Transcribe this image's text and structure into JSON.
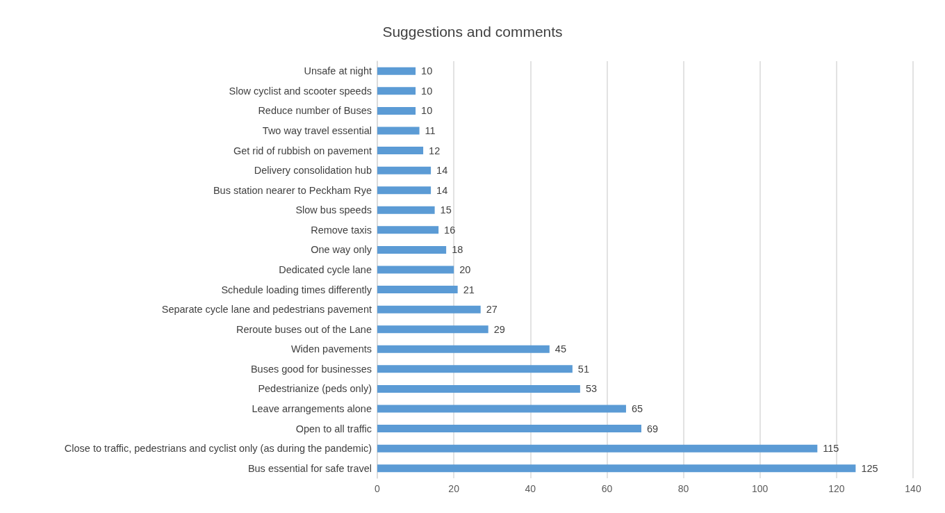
{
  "chart_data": {
    "type": "bar",
    "orientation": "horizontal",
    "title": "Suggestions and comments",
    "categories": [
      "Unsafe at night",
      "Slow cyclist and scooter speeds",
      "Reduce number of Buses",
      "Two way travel essential",
      "Get rid of rubbish on pavement",
      "Delivery consolidation hub",
      "Bus station nearer to Peckham Rye",
      "Slow bus speeds",
      "Remove taxis",
      "One way only",
      "Dedicated cycle lane",
      "Schedule loading times differently",
      "Separate cycle lane and pedestrians pavement",
      "Reroute buses out of the Lane",
      "Widen pavements",
      "Buses good for businesses",
      "Pedestrianize (peds only)",
      "Leave arrangements alone",
      "Open to all traffic",
      "Close to traffic, pedestrians and cyclist only (as during the pandemic)",
      "Bus essential for safe travel"
    ],
    "values": [
      10,
      10,
      10,
      11,
      12,
      14,
      14,
      15,
      16,
      18,
      20,
      21,
      27,
      29,
      45,
      51,
      53,
      65,
      69,
      115,
      125
    ],
    "color": "#5b9bd5",
    "xlim": [
      0,
      140
    ],
    "xticks": [
      0,
      20,
      40,
      60,
      80,
      100,
      120,
      140
    ],
    "grid": "x",
    "data_labels": true
  }
}
